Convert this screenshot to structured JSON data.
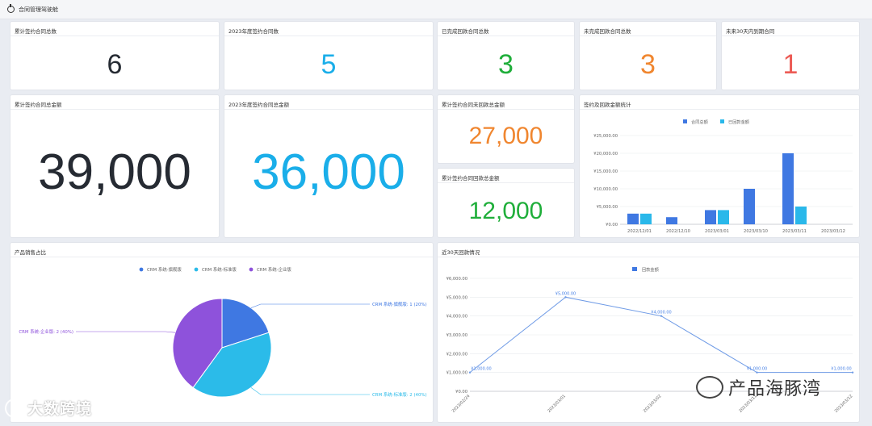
{
  "header": {
    "title": "合同管理驾驶舱"
  },
  "kpis": {
    "total_contracts": {
      "label": "累计签约合同总数",
      "value": "6"
    },
    "contracts_2023": {
      "label": "2023年度签约合同数",
      "value": "5"
    },
    "paid_contracts": {
      "label": "已完成回款合同总数",
      "value": "3"
    },
    "unpaid_contracts": {
      "label": "未完成回款合同总数",
      "value": "3"
    },
    "due_30_days": {
      "label": "未来30天内到期合同",
      "value": "1"
    },
    "total_amount": {
      "label": "累计签约合同总金额",
      "value": "39,000"
    },
    "amount_2023": {
      "label": "2023年度签约合同总金额",
      "value": "36,000"
    },
    "unreceived_amount": {
      "label": "累计签约合同未回款总金额",
      "value": "27,000"
    },
    "received_amount": {
      "label": "累计签约合同回款总金额",
      "value": "12,000"
    }
  },
  "bar_card": {
    "title": "签约及回款金额统计"
  },
  "pie_card": {
    "title": "产品销售占比"
  },
  "line_card": {
    "title": "近30天回款情况"
  },
  "watermarks": {
    "left": "大数跨境",
    "right": "产品海豚湾"
  },
  "chart_data": [
    {
      "type": "bar",
      "title": "签约及回款金额统计",
      "categories": [
        "2022/12/01",
        "2022/12/10",
        "2023/03/01",
        "2023/03/10",
        "2023/03/11",
        "2023/03/12"
      ],
      "series": [
        {
          "name": "合同总额",
          "color": "#3f78e2",
          "values": [
            3000,
            2000,
            4000,
            10000,
            20000,
            0
          ]
        },
        {
          "name": "已回款金额",
          "color": "#2ab8ea",
          "values": [
            3000,
            0,
            4000,
            0,
            5000,
            0
          ]
        }
      ],
      "yticks": [
        "¥0.00",
        "¥5,000.00",
        "¥10,000.00",
        "¥15,000.00",
        "¥20,000.00",
        "¥25,000.00"
      ],
      "ylim": [
        0,
        25000
      ],
      "legend": "top-center"
    },
    {
      "type": "pie",
      "title": "产品销售占比",
      "slices": [
        {
          "name": "CRM 系统-旗舰版",
          "value": 1,
          "label": "CRM 系统-旗舰版: 1 (20%)",
          "color": "#3f78e2"
        },
        {
          "name": "CRM 系统-标准版",
          "value": 2,
          "label": "CRM 系统-标准版: 2 (40%)",
          "color": "#2bbbe9"
        },
        {
          "name": "CRM 系统-企业版",
          "value": 2,
          "label": "CRM 系统-企业版: 2 (40%)",
          "color": "#8e52db"
        }
      ],
      "legend": "top-center"
    },
    {
      "type": "line",
      "title": "近30天回款情况",
      "series": [
        {
          "name": "回款金额",
          "color": "#6f9be6"
        }
      ],
      "x": [
        "2023/02/24",
        "2023/03/01",
        "2023/03/02",
        "2023/03/11",
        "2023/03/12"
      ],
      "values": [
        1000,
        5000,
        4000,
        1000,
        1000
      ],
      "labels": [
        "¥1,000.00",
        "¥5,000.00",
        "¥4,000.00",
        "¥1,000.00",
        "¥1,000.00"
      ],
      "yticks": [
        "¥0.00",
        "¥1,000.00",
        "¥2,000.00",
        "¥3,000.00",
        "¥4,000.00",
        "¥5,000.00",
        "¥6,000.00"
      ],
      "ylim": [
        0,
        6000
      ],
      "legend": "top-center"
    }
  ]
}
